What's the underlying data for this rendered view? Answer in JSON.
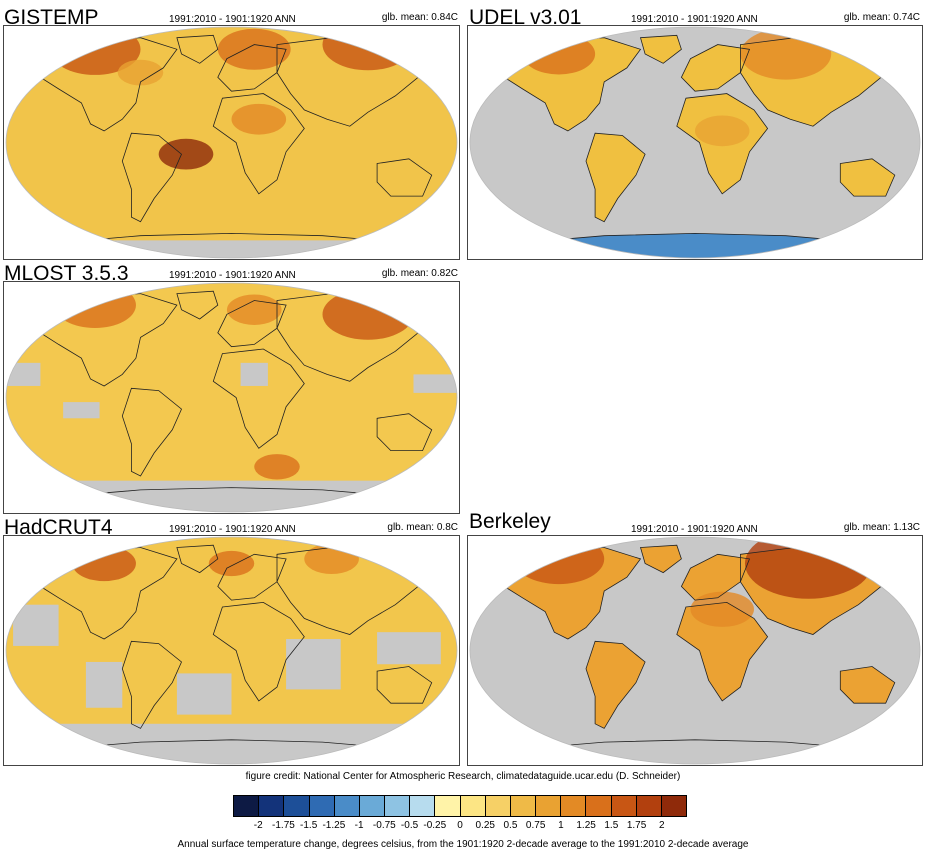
{
  "panels": [
    {
      "id": "gistemp",
      "title": "GISTEMP",
      "period": "1991:2010 - 1901:1920 ANN",
      "mean": "glb. mean: 0.84C",
      "coverage": "global",
      "base_color": "#f1c44a"
    },
    {
      "id": "udel",
      "title": "UDEL v3.01",
      "period": "1991:2010 - 1901:1920 ANN",
      "mean": "glb. mean: 0.74C",
      "coverage": "land",
      "base_color": "#f0c040"
    },
    {
      "id": "mlost",
      "title": "MLOST 3.5.3",
      "period": "1991:2010 - 1901:1920 ANN",
      "mean": "glb. mean: 0.82C",
      "coverage": "global-gaps",
      "base_color": "#f3c84f"
    },
    {
      "id": "hadcrut",
      "title": "HadCRUT4",
      "period": "1991:2010 - 1901:1920 ANN",
      "mean": "glb. mean: 0.8C",
      "coverage": "patchy",
      "base_color": "#f2c64c"
    },
    {
      "id": "berkeley",
      "title": "Berkeley",
      "period": "1991:2010 - 1901:1920 ANN",
      "mean": "glb. mean: 1.13C",
      "coverage": "land",
      "base_color": "#eba233"
    }
  ],
  "credit": "figure credit: National Center for Atmospheric Research, climatedataguide.ucar.edu (D. Schneider)",
  "colorbar": {
    "colors": [
      "#0d1a44",
      "#13337a",
      "#1d4f98",
      "#2f6bb3",
      "#4a8cc8",
      "#6aaad7",
      "#8ec3e3",
      "#b7dcee",
      "#fff3a8",
      "#fce584",
      "#f6d066",
      "#efba47",
      "#e9a232",
      "#e38a25",
      "#d9701b",
      "#c85614",
      "#b2400e",
      "#8f2a0a"
    ],
    "ticks": [
      "-2",
      "-1.75",
      "-1.5",
      "-1.25",
      "-1",
      "-0.75",
      "-0.5",
      "-0.25",
      "0",
      "0.25",
      "0.5",
      "0.75",
      "1",
      "1.25",
      "1.5",
      "1.75",
      "2"
    ]
  },
  "caption": "Annual surface temperature change, degrees celsius, from the 1901:1920 2-decade average to the 1991:2010 2-decade average"
}
